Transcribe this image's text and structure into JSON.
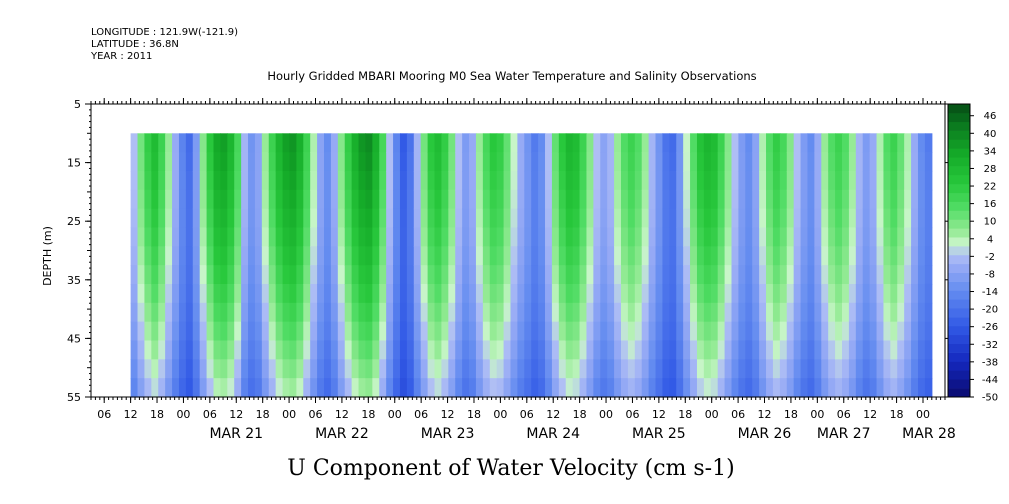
{
  "header": {
    "longitude": "LONGITUDE : 121.9W(-121.9)",
    "latitude": "LATITUDE : 36.8N",
    "year": "YEAR : 2011"
  },
  "chart_data": {
    "type": "heatmap",
    "title": "Hourly Gridded MBARI Mooring M0 Sea Water Temperature and Salinity Observations",
    "xlabel": "U Component of Water Velocity (cm s-1)",
    "ylabel": "DEPTH (m)",
    "y_ticks": [
      5,
      15,
      25,
      35,
      45,
      55
    ],
    "ylim": [
      5,
      55
    ],
    "depth_top_of_data": 10,
    "x_start": "2011-03-20T03:00",
    "x_end": "2011-03-28T05:00",
    "data_start": "2011-03-20T12:00",
    "data_end": "2011-03-28T02:00",
    "hour_labels": [
      "06",
      "12",
      "18",
      "00",
      "06",
      "12",
      "18",
      "00",
      "06",
      "12",
      "18",
      "00",
      "06",
      "12",
      "18",
      "00",
      "06",
      "12",
      "18",
      "00",
      "06",
      "12",
      "18",
      "00",
      "06",
      "12",
      "18",
      "00",
      "06",
      "12",
      "18",
      "00"
    ],
    "date_labels": [
      "MAR 21",
      "MAR 22",
      "MAR 23",
      "MAR 24",
      "MAR 25",
      "MAR 26",
      "MAR 27",
      "MAR 28"
    ],
    "colorbar": {
      "min": -50,
      "max": 50,
      "step": 3,
      "labels": [
        46,
        40,
        34,
        28,
        22,
        16,
        10,
        4,
        -2,
        -8,
        -14,
        -20,
        -26,
        -32,
        -38,
        -44,
        -50
      ]
    },
    "column_profile": [
      -2,
      10,
      20,
      26,
      18,
      6,
      -6,
      -16,
      -22,
      -10,
      8,
      22,
      32,
      34,
      28,
      16,
      -4,
      -12,
      -8,
      6,
      18,
      28,
      34,
      36,
      30,
      18,
      4,
      -8,
      -14,
      -6,
      8,
      20,
      30,
      36,
      38,
      30,
      16,
      -2,
      -16,
      -26,
      -20,
      -4,
      10,
      22,
      26,
      20,
      10,
      -2,
      -10,
      -6,
      6,
      16,
      22,
      20,
      12,
      2,
      -6,
      -12,
      -18,
      -14,
      -2,
      12,
      22,
      28,
      26,
      18,
      8,
      -2,
      -8,
      -4,
      6,
      14,
      18,
      14,
      6,
      -4,
      -12,
      -20,
      -22,
      -12,
      2,
      14,
      24,
      28,
      26,
      18,
      8,
      -2,
      -10,
      -14,
      -8,
      4,
      14,
      20,
      16,
      8,
      -2,
      -10,
      -14,
      -6,
      6,
      14,
      18,
      14,
      6,
      -4,
      -10,
      -6,
      4,
      14,
      18,
      12,
      4,
      -6,
      -14,
      -18
    ],
    "depth_gradient": {
      "near_surface": 1.0,
      "bottom": 0.55,
      "bottom_offset": -14
    }
  }
}
